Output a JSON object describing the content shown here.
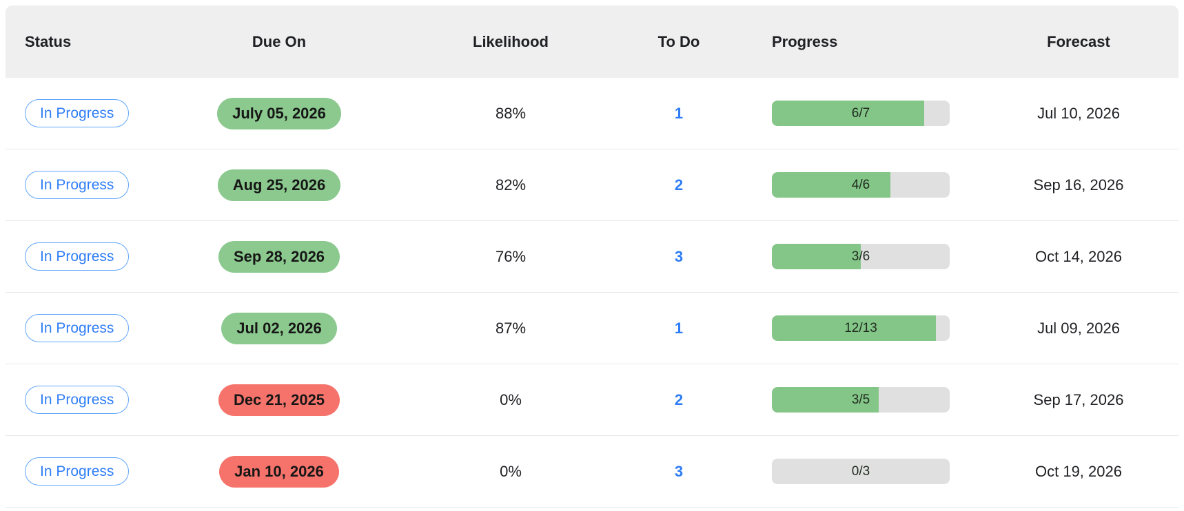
{
  "colors": {
    "header_bg": "#efeff0",
    "status_blue": "#2e7df6",
    "status_border_blue": "#5fa5f9",
    "due_green": "#8bc98e",
    "due_red": "#f5736b",
    "progress_fill_green": "#84c687",
    "progress_track_gray": "#e0e0e0",
    "row_divider": "#e7e7e7",
    "text_dark": "#202124"
  },
  "table": {
    "columns": [
      {
        "id": "status",
        "label": "Status"
      },
      {
        "id": "due_on",
        "label": "Due On"
      },
      {
        "id": "likelihood",
        "label": "Likelihood"
      },
      {
        "id": "todo",
        "label": "To Do"
      },
      {
        "id": "progress",
        "label": "Progress"
      },
      {
        "id": "forecast",
        "label": "Forecast"
      }
    ],
    "rows": [
      {
        "status": "In Progress",
        "due_on": "July 05, 2026",
        "due_tone": "green",
        "likelihood": "88%",
        "todo": "1",
        "progress": {
          "done": 6,
          "total": 7,
          "label": "6/7"
        },
        "forecast": "Jul 10, 2026"
      },
      {
        "status": "In Progress",
        "due_on": "Aug 25, 2026",
        "due_tone": "green",
        "likelihood": "82%",
        "todo": "2",
        "progress": {
          "done": 4,
          "total": 6,
          "label": "4/6"
        },
        "forecast": "Sep 16, 2026"
      },
      {
        "status": "In Progress",
        "due_on": "Sep 28, 2026",
        "due_tone": "green",
        "likelihood": "76%",
        "todo": "3",
        "progress": {
          "done": 3,
          "total": 6,
          "label": "3/6"
        },
        "forecast": "Oct 14, 2026"
      },
      {
        "status": "In Progress",
        "due_on": "Jul 02, 2026",
        "due_tone": "green",
        "likelihood": "87%",
        "todo": "1",
        "progress": {
          "done": 12,
          "total": 13,
          "label": "12/13"
        },
        "forecast": "Jul 09, 2026"
      },
      {
        "status": "In Progress",
        "due_on": "Dec 21, 2025",
        "due_tone": "red",
        "likelihood": "0%",
        "todo": "2",
        "progress": {
          "done": 3,
          "total": 5,
          "label": "3/5"
        },
        "forecast": "Sep 17, 2026"
      },
      {
        "status": "In Progress",
        "due_on": "Jan 10, 2026",
        "due_tone": "red",
        "likelihood": "0%",
        "todo": "3",
        "progress": {
          "done": 0,
          "total": 3,
          "label": "0/3"
        },
        "forecast": "Oct 19, 2026"
      }
    ]
  }
}
